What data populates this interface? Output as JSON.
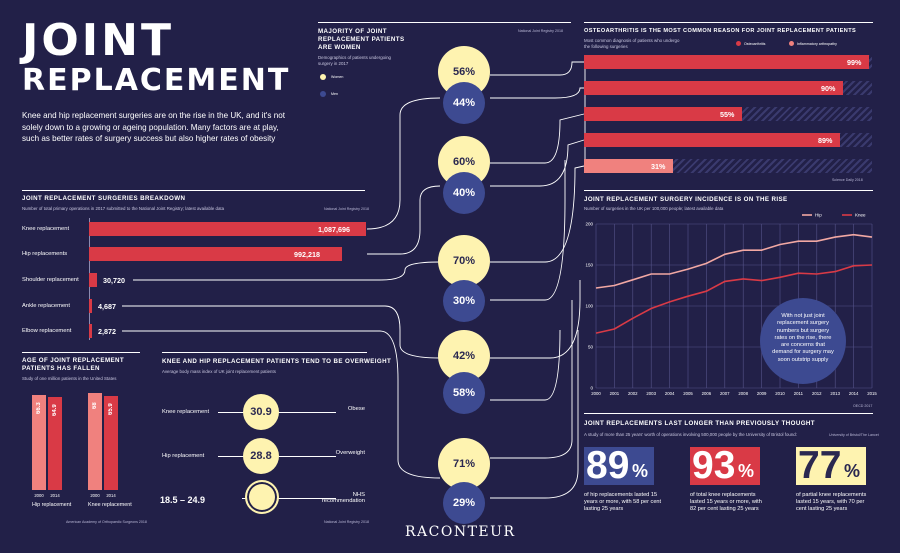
{
  "header": {
    "title_line1": "JOINT",
    "title_line2": "REPLACEMENT",
    "intro": "Knee and hip replacement surgeries are on the rise in the UK, and it's not solely down to a growing or ageing population. Many factors are at play, such as better rates of surgery success but also higher rates of obesity"
  },
  "breakdown": {
    "title": "JOINT REPLACEMENT SURGERIES BREAKDOWN",
    "subtitle": "Number of total primary operations in 2017 submitted to the National Joint Registry; latest available data",
    "source": "National Joint Registry 2018",
    "rows": [
      {
        "label": "Knee replacement",
        "value": 1087696,
        "display": "1,087,696"
      },
      {
        "label": "Hip replacements",
        "value": 992218,
        "display": "992,218"
      },
      {
        "label": "Shoulder replacement",
        "value": 30720,
        "display": "30,720"
      },
      {
        "label": "Ankle replacement",
        "value": 4687,
        "display": "4,687"
      },
      {
        "label": "Elbow replacement",
        "value": 2872,
        "display": "2,872"
      }
    ]
  },
  "women": {
    "title_line1": "MAJORITY OF JOINT",
    "title_line2": "REPLACEMENT PATIENTS",
    "title_line3": "ARE WOMEN",
    "subtitle_line1": "Demographics of patients undergoing",
    "subtitle_line2": "surgery in 2017",
    "source": "National Joint Registry 2018",
    "legend_women": "Women",
    "legend_men": "Men",
    "pairs": [
      {
        "women": "56%",
        "men": "44%"
      },
      {
        "women": "60%",
        "men": "40%"
      },
      {
        "women": "70%",
        "men": "30%"
      },
      {
        "women": "42%",
        "men": "58%"
      },
      {
        "women": "71%",
        "men": "29%"
      }
    ]
  },
  "osteo": {
    "title": "OSTEOARTHRITIS IS THE MOST COMMON REASON FOR JOINT REPLACEMENT PATIENTS",
    "subtitle_line1": "Most common diagnosis of patients who undergo",
    "subtitle_line2": "the following surgeries",
    "legend_osteo": "Osteoarthritis",
    "legend_inflam": "Inflammatory arthropathy",
    "source": "Science Daily 2018",
    "colors": {
      "osteo": "#d93a46",
      "inflam": "#f0817e"
    },
    "bars": [
      {
        "value": 99,
        "label": "99%",
        "kind": "osteo"
      },
      {
        "value": 90,
        "label": "90%",
        "kind": "osteo"
      },
      {
        "value": 55,
        "label": "55%",
        "kind": "osteo"
      },
      {
        "value": 89,
        "label": "89%",
        "kind": "osteo"
      },
      {
        "value": 31,
        "label": "31%",
        "kind": "inflam"
      }
    ]
  },
  "incidence": {
    "title": "JOINT REPLACEMENT SURGERY INCIDENCE IS ON THE RISE",
    "subtitle": "Number of surgeries in the UK per 100,000 people; latest available data",
    "source": "OECD 2017",
    "note": "With not just joint replacement surgery numbers but surgery rates on the rise, there are concerns that demand for surgery may soon outstrip supply",
    "chart_data": {
      "type": "line",
      "x": [
        "2000",
        "2001",
        "2002",
        "2003",
        "2004",
        "2005",
        "2006",
        "2007",
        "2008",
        "2009",
        "2010",
        "2011",
        "2012",
        "2013",
        "2014",
        "2015"
      ],
      "ylim": [
        0,
        200
      ],
      "yticks": [
        "0",
        "50",
        "100",
        "150",
        "200"
      ],
      "series": [
        {
          "name": "Hip",
          "color": "#f2a8a3",
          "values": [
            122,
            125,
            132,
            139,
            139,
            145,
            152,
            163,
            168,
            168,
            175,
            179,
            179,
            184,
            187,
            184
          ]
        },
        {
          "name": "Knee",
          "color": "#d93a46",
          "values": [
            67,
            72,
            85,
            97,
            105,
            112,
            118,
            130,
            133,
            131,
            135,
            140,
            139,
            142,
            149,
            150
          ]
        }
      ],
      "grid": true,
      "legend": "top-right"
    }
  },
  "age": {
    "title_line1": "AGE OF JOINT REPLACEMENT",
    "title_line2": "PATIENTS HAS FALLEN",
    "subtitle": "Study of one million patients in the United States",
    "source": "American Academy of Orthopaedic Surgeons 2018",
    "groups": [
      {
        "name": "Hip replacement",
        "bars": [
          {
            "year": "2000",
            "value": 66.3,
            "label": "66.3"
          },
          {
            "year": "2014",
            "value": 64.9,
            "label": "64.9"
          }
        ]
      },
      {
        "name": "Knee replacement",
        "bars": [
          {
            "year": "2000",
            "value": 68,
            "label": "68"
          },
          {
            "year": "2014",
            "value": 65.9,
            "label": "65.9"
          }
        ]
      }
    ]
  },
  "bmi": {
    "title": "KNEE AND HIP REPLACEMENT PATIENTS TEND TO BE OVERWEIGHT",
    "subtitle": "Average body mass index of UK joint replacement patients",
    "source": "National Joint Registry 2018",
    "rows": [
      {
        "left": "Knee replacement",
        "value": "30.9",
        "right": "Obese"
      },
      {
        "left": "Hip replacement",
        "value": "28.8",
        "right": "Overweight"
      },
      {
        "left": "18.5 – 24.9",
        "value": "",
        "right": "NHS recommendation"
      }
    ]
  },
  "longer": {
    "title": "JOINT REPLACEMENTS LAST LONGER THAN PREVIOUSLY THOUGHT",
    "subtitle": "A study of more than 25 years' worth of operations involving 500,000 people by the University of Bristol found:",
    "source": "University of Bristol/The Lancet",
    "stats": [
      {
        "num": "89",
        "pct": "%",
        "color": "#3d4a91",
        "text_line1": "of hip replacements lasted 15",
        "text_line2": "years or more, with 58 per cent",
        "text_line3": "lasting 25 years"
      },
      {
        "num": "93",
        "pct": "%",
        "color": "#d93a46",
        "text_line1": "of total knee replacements",
        "text_line2": "lasted 15 years or more, with",
        "text_line3": "82 per cent lasting 25 years"
      },
      {
        "num": "77",
        "pct": "%",
        "color": "#fef3b0",
        "text_line1": "of partial knee replacements",
        "text_line2": "lasted 15 years, with 70 per",
        "text_line3": "cent lasting 25 years"
      }
    ]
  },
  "footer": {
    "brand": "RACONTEUR"
  }
}
